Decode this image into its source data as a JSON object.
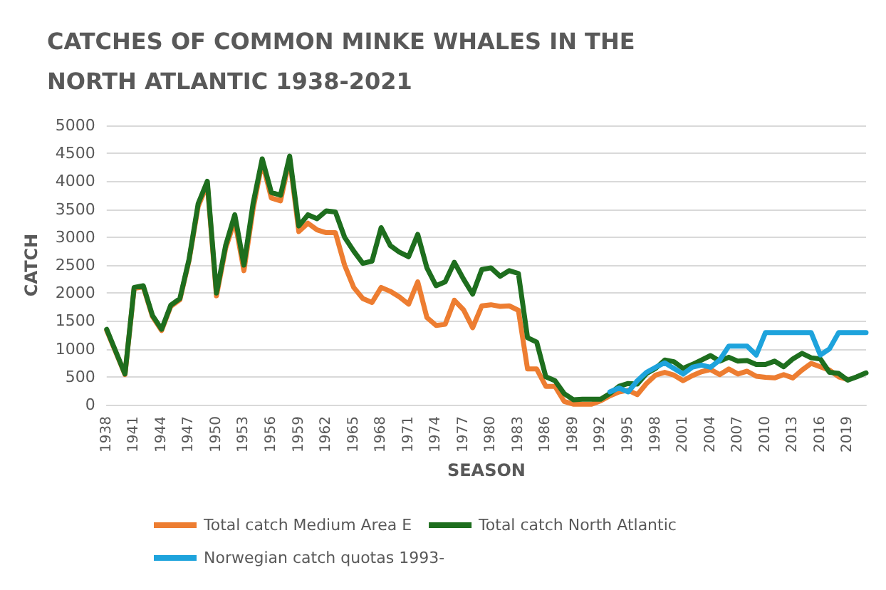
{
  "chart_data": {
    "type": "line",
    "title": "CATCHES OF COMMON MINKE WHALES IN THE\nNORTH ATLANTIC 1938-2021",
    "xlabel": "SEASON",
    "ylabel": "CATCH",
    "categories": [
      "1938",
      null,
      null,
      "1941",
      null,
      null,
      "1944",
      null,
      null,
      "1947",
      null,
      null,
      "1950",
      null,
      null,
      "1953",
      null,
      null,
      "1956",
      null,
      null,
      "1959",
      null,
      null,
      "1962",
      null,
      null,
      "1965",
      null,
      null,
      "1968",
      null,
      null,
      "1971",
      null,
      null,
      "1974",
      null,
      null,
      "1977",
      null,
      null,
      "1980",
      null,
      null,
      "1983",
      null,
      null,
      "1986",
      null,
      null,
      "1989",
      null,
      null,
      "1992",
      null,
      null,
      "1995",
      null,
      null,
      "1998",
      null,
      null,
      "2001",
      null,
      null,
      "2004",
      null,
      null,
      "2007",
      null,
      null,
      "2010",
      null,
      null,
      "2013",
      null,
      null,
      "2016",
      null,
      null,
      "2019",
      null,
      null
    ],
    "series": [
      {
        "name": "Total catch Medium Area E",
        "color": "#ed7d31",
        "values": [
          1330,
          940,
          540,
          2080,
          2110,
          1580,
          1330,
          1760,
          1880,
          2580,
          3550,
          3950,
          1950,
          2800,
          3300,
          2400,
          3500,
          4350,
          3700,
          3650,
          4400,
          3100,
          3250,
          3130,
          3080,
          3080,
          2500,
          2100,
          1900,
          1830,
          2100,
          2030,
          1930,
          1800,
          2200,
          1560,
          1420,
          1440,
          1870,
          1700,
          1380,
          1770,
          1790,
          1760,
          1770,
          1690,
          640,
          640,
          330,
          330,
          60,
          10,
          10,
          10,
          70,
          160,
          230,
          260,
          180,
          380,
          530,
          580,
          530,
          430,
          520,
          590,
          630,
          540,
          640,
          550,
          600,
          510,
          490,
          480,
          540,
          480,
          620,
          740,
          680,
          620,
          500,
          450,
          null,
          null
        ]
      },
      {
        "name": "Total catch North Atlantic",
        "color": "#1e6e1e",
        "values": [
          1350,
          950,
          550,
          2100,
          2130,
          1600,
          1350,
          1780,
          1900,
          2600,
          3600,
          4000,
          2000,
          2850,
          3400,
          2500,
          3600,
          4400,
          3800,
          3750,
          4450,
          3200,
          3400,
          3330,
          3470,
          3450,
          3000,
          2750,
          2530,
          2570,
          3170,
          2850,
          2730,
          2650,
          3050,
          2450,
          2130,
          2200,
          2550,
          2250,
          1980,
          2420,
          2450,
          2300,
          2400,
          2350,
          1200,
          1120,
          500,
          430,
          200,
          90,
          100,
          100,
          100,
          200,
          330,
          380,
          370,
          560,
          650,
          800,
          770,
          650,
          720,
          800,
          880,
          780,
          850,
          780,
          790,
          720,
          720,
          780,
          680,
          820,
          920,
          840,
          820,
          580,
          560,
          440,
          500,
          570
        ]
      },
      {
        "name": "Norwegian catch quotas 1993-",
        "color": "#1ea3dc",
        "values": [
          null,
          null,
          null,
          null,
          null,
          null,
          null,
          null,
          null,
          null,
          null,
          null,
          null,
          null,
          null,
          null,
          null,
          null,
          null,
          null,
          null,
          null,
          null,
          null,
          null,
          null,
          null,
          null,
          null,
          null,
          null,
          null,
          null,
          null,
          null,
          null,
          null,
          null,
          null,
          null,
          null,
          null,
          null,
          null,
          null,
          null,
          null,
          null,
          null,
          null,
          null,
          null,
          null,
          null,
          null,
          230,
          300,
          230,
          430,
          580,
          670,
          750,
          650,
          550,
          670,
          710,
          670,
          800,
          1050,
          1050,
          1050,
          890,
          1290,
          1290,
          1290,
          1290,
          1290,
          1290,
          890,
          1000,
          1290,
          1290,
          1290,
          1290
        ]
      }
    ],
    "ylim": [
      0,
      5000
    ],
    "yticks": [
      0,
      500,
      1000,
      1500,
      2000,
      2500,
      3000,
      3500,
      4000,
      4500,
      5000
    ],
    "grid": "y",
    "legend": "bottom",
    "marker": "none",
    "line_style": "solid"
  }
}
